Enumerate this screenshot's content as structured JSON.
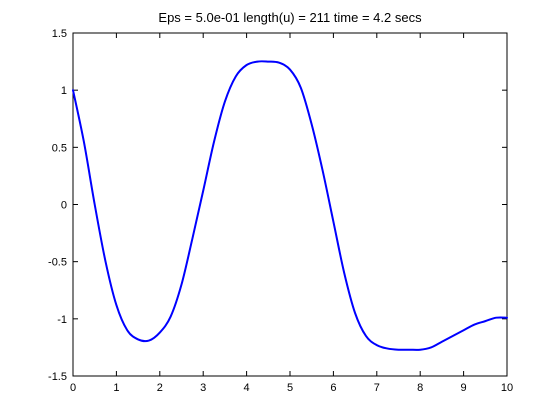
{
  "chart_data": {
    "type": "line",
    "title": "Eps = 5.0e-01    length(u) = 211    time = 4.2 secs",
    "xlabel": "",
    "ylabel": "",
    "xlim": [
      0,
      10
    ],
    "ylim": [
      -1.5,
      1.5
    ],
    "x_ticks": [
      {
        "value": 0,
        "label": "0"
      },
      {
        "value": 1,
        "label": "1"
      },
      {
        "value": 2,
        "label": "2"
      },
      {
        "value": 3,
        "label": "3"
      },
      {
        "value": 4,
        "label": "4"
      },
      {
        "value": 5,
        "label": "5"
      },
      {
        "value": 6,
        "label": "6"
      },
      {
        "value": 7,
        "label": "7"
      },
      {
        "value": 8,
        "label": "8"
      },
      {
        "value": 9,
        "label": "9"
      },
      {
        "value": 10,
        "label": "10"
      }
    ],
    "y_ticks": [
      {
        "value": -1.5,
        "label": "-1.5"
      },
      {
        "value": -1,
        "label": "-1"
      },
      {
        "value": -0.5,
        "label": "-0.5"
      },
      {
        "value": 0,
        "label": "0"
      },
      {
        "value": 0.5,
        "label": "0.5"
      },
      {
        "value": 1,
        "label": "1"
      },
      {
        "value": 1.5,
        "label": "1.5"
      }
    ],
    "grid": false,
    "line_color": "#0000ff",
    "series": [
      {
        "x": [
          0,
          0.25,
          0.5,
          0.75,
          1.0,
          1.25,
          1.5,
          1.75,
          2.0,
          2.25,
          2.5,
          2.75,
          3.0,
          3.25,
          3.5,
          3.75,
          4.0,
          4.25,
          4.5,
          4.75,
          5.0,
          5.25,
          5.5,
          5.75,
          6.0,
          6.25,
          6.5,
          6.75,
          7.0,
          7.25,
          7.5,
          7.75,
          8.0,
          8.25,
          8.5,
          8.75,
          9.0,
          9.25,
          9.5,
          9.75,
          10.0
        ],
        "values": [
          1.0,
          0.55,
          0.0,
          -0.5,
          -0.88,
          -1.1,
          -1.18,
          -1.19,
          -1.12,
          -0.98,
          -0.7,
          -0.3,
          0.12,
          0.55,
          0.9,
          1.12,
          1.22,
          1.25,
          1.25,
          1.24,
          1.18,
          1.02,
          0.7,
          0.3,
          -0.15,
          -0.6,
          -0.95,
          -1.15,
          -1.23,
          -1.26,
          -1.27,
          -1.27,
          -1.27,
          -1.25,
          -1.2,
          -1.15,
          -1.1,
          -1.05,
          -1.02,
          -0.99,
          -0.99
        ]
      }
    ]
  }
}
